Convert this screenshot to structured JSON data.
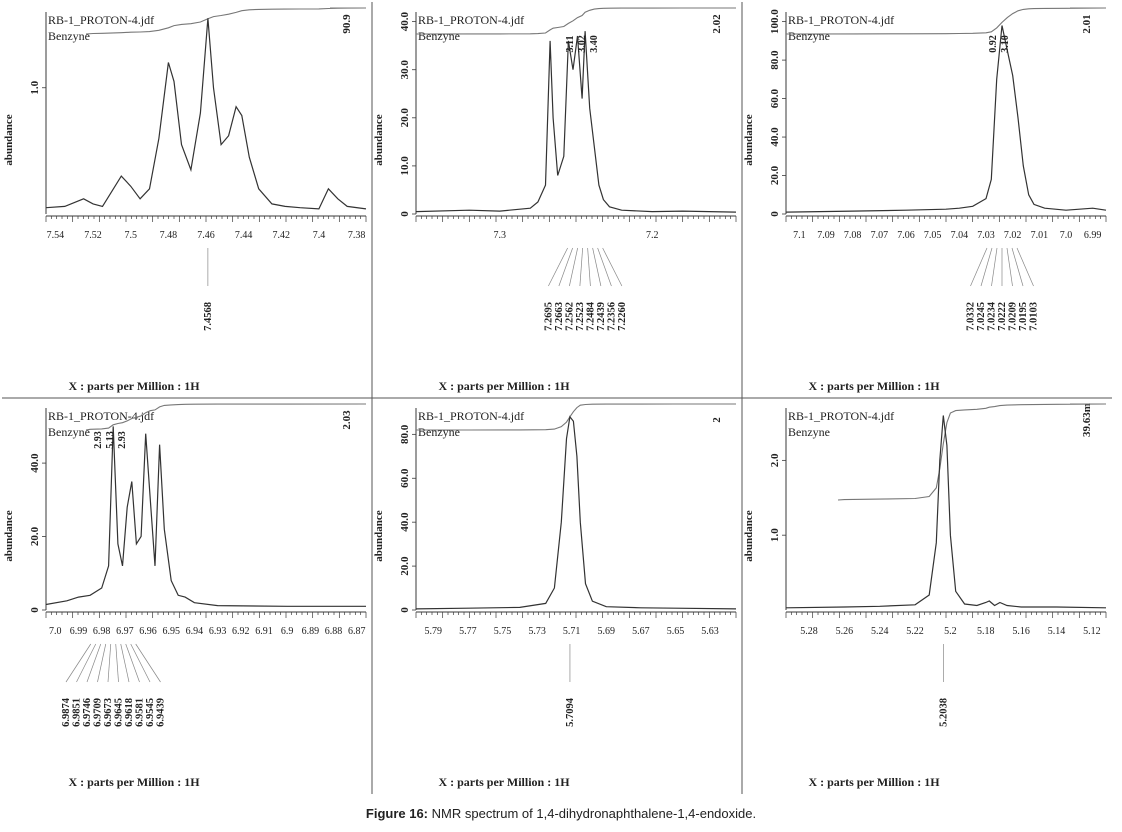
{
  "caption": {
    "label": "Figure 16:",
    "text": "NMR spectrum of 1,4-dihydronaphthalene-1,4-endoxide."
  },
  "colors": {
    "ink": "#3a3a3a",
    "grid": "#555555"
  },
  "chart_data": [
    {
      "type": "line",
      "file_label": "RB-1_PROTON-4.jdf",
      "solvent_label": "Benzyne",
      "xlabel": "X : parts per Million : 1H",
      "ylabel": "abundance",
      "xlim": [
        7.545,
        7.375
      ],
      "x_ticks": [
        "7.54",
        "7.52",
        "7.5",
        "7.48",
        "7.46",
        "7.44",
        "7.42",
        "7.4",
        "7.38"
      ],
      "x_tick_values": [
        7.54,
        7.52,
        7.5,
        7.48,
        7.46,
        7.44,
        7.42,
        7.4,
        7.38
      ],
      "y_ticks": [
        "1.0"
      ],
      "y_tick_values": [
        1.0
      ],
      "ylim": [
        0,
        1.6
      ],
      "integral_label": "90.9",
      "integral_labels": [],
      "peak_labels": [
        "7.4568"
      ],
      "series": [
        {
          "x": [
            7.545,
            7.535,
            7.525,
            7.52,
            7.515,
            7.505,
            7.5,
            7.495,
            7.49,
            7.485,
            7.48,
            7.477,
            7.473,
            7.468,
            7.463,
            7.459,
            7.456,
            7.452,
            7.448,
            7.444,
            7.441,
            7.437,
            7.432,
            7.425,
            7.418,
            7.41,
            7.4,
            7.395,
            7.39,
            7.385,
            7.375
          ],
          "y": [
            0.05,
            0.06,
            0.12,
            0.08,
            0.06,
            0.3,
            0.22,
            0.12,
            0.2,
            0.6,
            1.2,
            1.05,
            0.55,
            0.35,
            0.8,
            1.55,
            1.0,
            0.55,
            0.62,
            0.85,
            0.78,
            0.45,
            0.2,
            0.08,
            0.06,
            0.05,
            0.04,
            0.2,
            0.12,
            0.06,
            0.04
          ]
        }
      ]
    },
    {
      "type": "line",
      "file_label": "RB-1_PROTON-4.jdf",
      "solvent_label": "Benzyne",
      "xlabel": "X : parts per Million : 1H",
      "ylabel": "abundance",
      "xlim": [
        7.355,
        7.145
      ],
      "x_ticks": [
        "7.3",
        "7.2"
      ],
      "x_tick_values": [
        7.3,
        7.2
      ],
      "y_ticks": [
        "0",
        "10.0",
        "20.0",
        "30.0",
        "40.0"
      ],
      "y_tick_values": [
        0,
        10,
        20,
        30,
        40
      ],
      "ylim": [
        0,
        42
      ],
      "integral_label": "2.02",
      "integral_labels": [
        "3.11",
        "3.02",
        "3.40"
      ],
      "peak_labels": [
        "7.2695",
        "7.2663",
        "7.2562",
        "7.2523",
        "7.2484",
        "7.2439",
        "7.2356",
        "7.2260"
      ],
      "series": [
        {
          "x": [
            7.355,
            7.32,
            7.3,
            7.28,
            7.275,
            7.27,
            7.267,
            7.265,
            7.262,
            7.258,
            7.255,
            7.252,
            7.249,
            7.246,
            7.244,
            7.241,
            7.238,
            7.235,
            7.232,
            7.228,
            7.22,
            7.2,
            7.18,
            7.145
          ],
          "y": [
            0.5,
            0.8,
            0.6,
            1.2,
            2.5,
            6,
            36,
            20,
            8,
            12,
            36,
            30,
            37,
            24,
            38,
            22,
            14,
            6,
            3,
            1.5,
            0.8,
            0.5,
            0.6,
            0.4
          ]
        }
      ]
    },
    {
      "type": "line",
      "file_label": "RB-1_PROTON-4.jdf",
      "solvent_label": "Benzyne",
      "xlabel": "X : parts per Million : 1H",
      "ylabel": "abundance",
      "xlim": [
        7.105,
        6.985
      ],
      "x_ticks": [
        "7.1",
        "7.09",
        "7.08",
        "7.07",
        "7.06",
        "7.05",
        "7.04",
        "7.03",
        "7.02",
        "7.01",
        "7.0",
        "6.99"
      ],
      "x_tick_values": [
        7.1,
        7.09,
        7.08,
        7.07,
        7.06,
        7.05,
        7.04,
        7.03,
        7.02,
        7.01,
        7.0,
        6.99
      ],
      "y_ticks": [
        "0",
        "20.0",
        "40.0",
        "60.0",
        "80.0",
        "100.0"
      ],
      "y_tick_values": [
        0,
        20,
        40,
        60,
        80,
        100
      ],
      "ylim": [
        0,
        105
      ],
      "integral_label": "2.01",
      "integral_labels": [
        "0.92",
        "3.10"
      ],
      "peak_labels": [
        "7.0332",
        "7.0245",
        "7.0234",
        "7.0222",
        "7.0209",
        "7.0195",
        "7.0103"
      ],
      "series": [
        {
          "x": [
            7.105,
            7.08,
            7.06,
            7.045,
            7.04,
            7.035,
            7.03,
            7.028,
            7.026,
            7.024,
            7.022,
            7.02,
            7.018,
            7.016,
            7.014,
            7.012,
            7.008,
            7.0,
            6.99,
            6.985
          ],
          "y": [
            1,
            1.5,
            2,
            2.5,
            3,
            4,
            8,
            18,
            70,
            98,
            85,
            72,
            50,
            25,
            10,
            5,
            3,
            2,
            3,
            2
          ]
        }
      ]
    },
    {
      "type": "line",
      "file_label": "RB-1_PROTON-4.jdf",
      "solvent_label": "Benzyne",
      "xlabel": "X : parts per Million : 1H",
      "ylabel": "abundance",
      "xlim": [
        7.004,
        6.866
      ],
      "x_ticks": [
        "7.0",
        "6.99",
        "6.98",
        "6.97",
        "6.96",
        "6.95",
        "6.94",
        "6.93",
        "6.92",
        "6.91",
        "6.9",
        "6.89",
        "6.88",
        "6.87"
      ],
      "x_tick_values": [
        7.0,
        6.99,
        6.98,
        6.97,
        6.96,
        6.95,
        6.94,
        6.93,
        6.92,
        6.91,
        6.9,
        6.89,
        6.88,
        6.87
      ],
      "y_ticks": [
        "0",
        "20.0",
        "40.0"
      ],
      "y_tick_values": [
        0,
        20,
        40
      ],
      "ylim": [
        0,
        55
      ],
      "integral_label": "2.03",
      "integral_labels": [
        "2.93",
        "5.13",
        "2.93"
      ],
      "peak_labels": [
        "6.9874",
        "6.9851",
        "6.9746",
        "6.9709",
        "6.9673",
        "6.9645",
        "6.9618",
        "6.9581",
        "6.9545",
        "6.9439"
      ],
      "series": [
        {
          "x": [
            7.004,
            6.995,
            6.99,
            6.985,
            6.98,
            6.977,
            6.975,
            6.973,
            6.971,
            6.969,
            6.967,
            6.965,
            6.963,
            6.961,
            6.959,
            6.957,
            6.955,
            6.953,
            6.95,
            6.947,
            6.944,
            6.94,
            6.93,
            6.9,
            6.866
          ],
          "y": [
            1.5,
            2.5,
            3.5,
            4,
            6,
            12,
            50,
            18,
            12,
            28,
            35,
            18,
            20,
            48,
            30,
            12,
            45,
            22,
            8,
            4,
            3.5,
            2,
            1.2,
            1,
            1
          ]
        }
      ]
    },
    {
      "type": "line",
      "file_label": "RB-1_PROTON-4.jdf",
      "solvent_label": "Benzyne",
      "xlabel": "X : parts per Million : 1H",
      "ylabel": "abundance",
      "xlim": [
        5.8,
        5.615
      ],
      "x_ticks": [
        "5.79",
        "5.77",
        "5.75",
        "5.73",
        "5.71",
        "5.69",
        "5.67",
        "5.65",
        "5.63"
      ],
      "x_tick_values": [
        5.79,
        5.77,
        5.75,
        5.73,
        5.71,
        5.69,
        5.67,
        5.65,
        5.63
      ],
      "y_ticks": [
        "0",
        "20.0",
        "40.0",
        "60.0",
        "80.0"
      ],
      "y_tick_values": [
        0,
        20,
        40,
        60,
        80
      ],
      "ylim": [
        0,
        92
      ],
      "integral_label": "2",
      "integral_labels": [],
      "peak_labels": [
        "5.7094"
      ],
      "series": [
        {
          "x": [
            5.8,
            5.77,
            5.74,
            5.725,
            5.72,
            5.716,
            5.713,
            5.711,
            5.709,
            5.707,
            5.705,
            5.702,
            5.698,
            5.69,
            5.67,
            5.65,
            5.615
          ],
          "y": [
            0.5,
            0.8,
            1.2,
            3,
            10,
            40,
            78,
            88,
            86,
            70,
            40,
            12,
            4,
            1.5,
            1,
            0.8,
            0.5
          ]
        }
      ]
    },
    {
      "type": "line",
      "file_label": "RB-1_PROTON-4.jdf",
      "solvent_label": "Benzyne",
      "xlabel": "X : parts per Million : 1H",
      "ylabel": "abundance",
      "xlim": [
        5.293,
        5.112
      ],
      "x_ticks": [
        "5.28",
        "5.26",
        "5.24",
        "5.22",
        "5.2",
        "5.18",
        "5.16",
        "5.14",
        "5.12"
      ],
      "x_tick_values": [
        5.28,
        5.26,
        5.24,
        5.22,
        5.2,
        5.18,
        5.16,
        5.14,
        5.12
      ],
      "y_ticks": [
        "1.0",
        "2.0"
      ],
      "y_tick_values": [
        1.0,
        2.0
      ],
      "ylim": [
        0,
        2.7
      ],
      "integral_label": "39.63m",
      "integral_labels": [],
      "peak_labels": [
        "5.2038"
      ],
      "series": [
        {
          "x": [
            5.293,
            5.26,
            5.24,
            5.22,
            5.212,
            5.208,
            5.206,
            5.204,
            5.202,
            5.2,
            5.197,
            5.192,
            5.185,
            5.18,
            5.178,
            5.175,
            5.172,
            5.168,
            5.16,
            5.14,
            5.112
          ],
          "y": [
            0.03,
            0.04,
            0.05,
            0.07,
            0.2,
            0.9,
            2.0,
            2.6,
            2.2,
            1.0,
            0.25,
            0.08,
            0.06,
            0.1,
            0.12,
            0.06,
            0.1,
            0.06,
            0.04,
            0.04,
            0.03
          ]
        }
      ]
    }
  ]
}
